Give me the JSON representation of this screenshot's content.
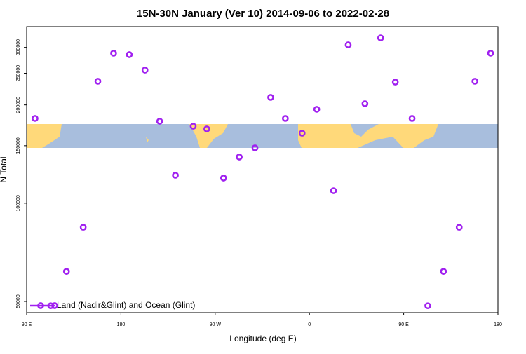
{
  "chart_data": {
    "type": "scatter",
    "title": "15N-30N January (Ver 10)   2014-09-06 to 2022-02-28",
    "x_label": "Longitude (deg E)",
    "y_label": "N Total",
    "log_y": true,
    "legend_position": "lower left",
    "xlim": [
      90,
      540
    ],
    "ylim": [
      46200,
      347400
    ],
    "xticks": [
      {
        "value": 90,
        "label": "90 E"
      },
      {
        "value": 180,
        "label": "180"
      },
      {
        "value": 270,
        "label": "90 W"
      },
      {
        "value": 360,
        "label": "0"
      },
      {
        "value": 450,
        "label": "90 E"
      },
      {
        "value": 540,
        "label": "180"
      }
    ],
    "yticks": [
      50000,
      100000,
      150000,
      200000,
      250000,
      300000
    ],
    "series": [
      {
        "name": "Land (Nadir&Glint) and Ocean (Glint)",
        "color": "#a020f0",
        "x": [
          98,
          113,
          128,
          144,
          158,
          173,
          188,
          203,
          217,
          232,
          249,
          262,
          278,
          293,
          308,
          323,
          337,
          353,
          367,
          383,
          397,
          413,
          428,
          442,
          458,
          473,
          488,
          503,
          518,
          533
        ],
        "values": [
          181800,
          48500,
          61800,
          84400,
          236300,
          288000,
          285100,
          255700,
          178200,
          121800,
          172100,
          168800,
          119400,
          138500,
          147700,
          210900,
          181800,
          163800,
          193900,
          109200,
          305500,
          201700,
          320900,
          235000,
          181800,
          48500,
          61800,
          84400,
          236300,
          288000
        ]
      }
    ]
  }
}
